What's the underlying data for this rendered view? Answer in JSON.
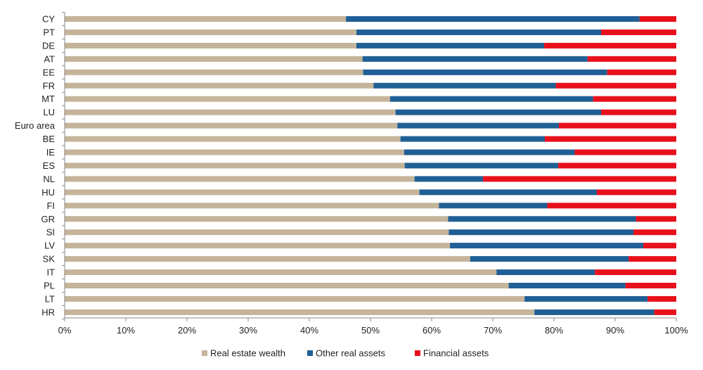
{
  "chart_data": {
    "type": "bar",
    "orientation": "horizontal",
    "stacked": "100%",
    "title": "",
    "xlabel": "",
    "ylabel": "",
    "xlim": [
      0,
      100
    ],
    "x_ticks": [
      "0%",
      "10%",
      "20%",
      "30%",
      "40%",
      "50%",
      "60%",
      "70%",
      "80%",
      "90%",
      "100%"
    ],
    "grid": false,
    "legend_position": "bottom",
    "categories": [
      "CY",
      "PT",
      "DE",
      "AT",
      "EE",
      "FR",
      "MT",
      "LU",
      "Euro area",
      "BE",
      "IE",
      "ES",
      "NL",
      "HU",
      "FI",
      "GR",
      "SI",
      "LV",
      "SK",
      "IT",
      "PL",
      "LT",
      "HR"
    ],
    "series": [
      {
        "name": "Real estate wealth",
        "color": "#c4b49a",
        "values": [
          46.0,
          47.7,
          47.7,
          48.7,
          48.8,
          50.5,
          53.2,
          54.1,
          54.4,
          54.9,
          55.5,
          55.6,
          57.2,
          58.0,
          61.2,
          62.7,
          62.8,
          63.0,
          66.3,
          70.6,
          72.6,
          75.2,
          76.8
        ]
      },
      {
        "name": "Other real assets",
        "color": "#1f5f95",
        "values": [
          48.0,
          40.0,
          30.7,
          36.8,
          39.9,
          29.8,
          33.2,
          33.6,
          26.4,
          23.6,
          27.9,
          25.1,
          11.2,
          29.0,
          17.7,
          30.7,
          30.2,
          31.6,
          25.9,
          16.1,
          19.1,
          20.1,
          19.6
        ]
      },
      {
        "name": "Financial assets",
        "color": "#e8101b",
        "values": [
          6.0,
          12.3,
          21.6,
          14.5,
          11.3,
          19.7,
          13.6,
          12.3,
          19.2,
          21.5,
          16.6,
          19.3,
          31.6,
          13.0,
          21.1,
          6.6,
          7.0,
          5.4,
          7.8,
          13.3,
          8.3,
          4.7,
          3.6
        ]
      }
    ]
  }
}
